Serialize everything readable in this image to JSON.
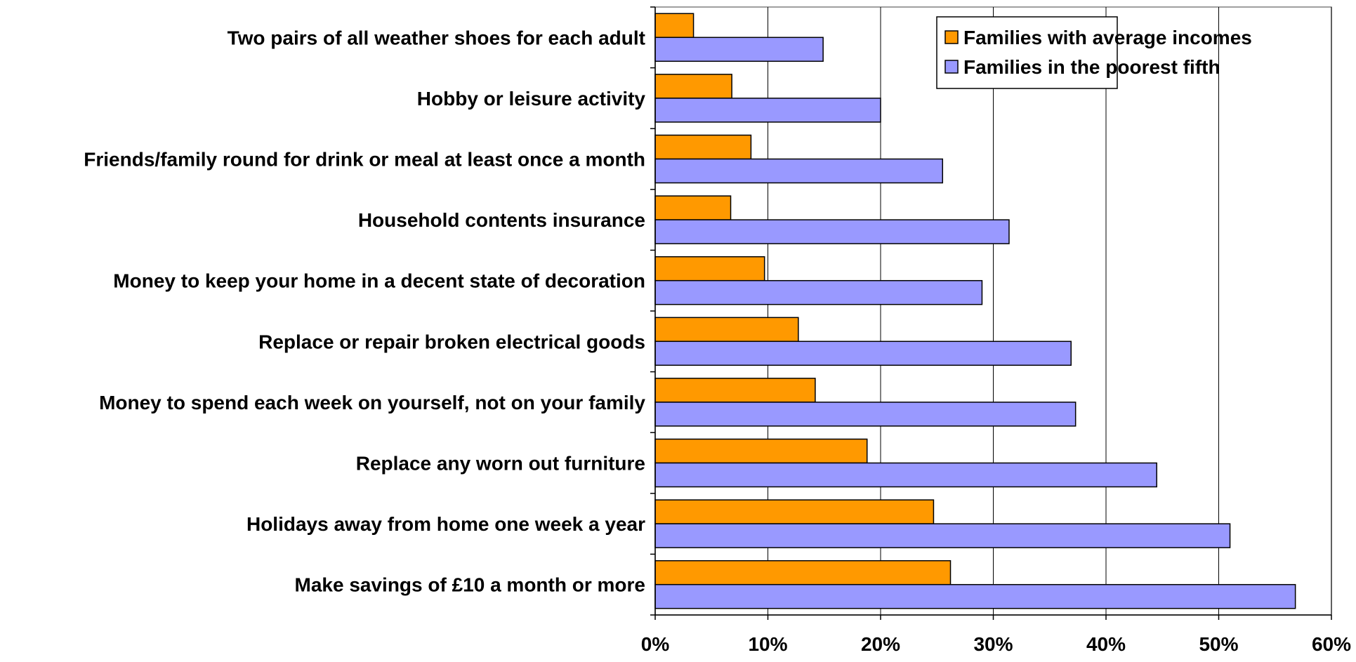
{
  "chart_data": {
    "type": "bar",
    "orientation": "horizontal",
    "title": "",
    "xlabel": "",
    "ylabel": "",
    "xlim": [
      0,
      60
    ],
    "x_ticks": [
      0,
      10,
      20,
      30,
      40,
      50,
      60
    ],
    "x_tick_labels": [
      "0%",
      "10%",
      "20%",
      "30%",
      "40%",
      "50%",
      "60%"
    ],
    "grid": "vertical",
    "legend_position": "top-right",
    "categories": [
      "Two pairs of all weather shoes for each adult",
      "Hobby or leisure activity",
      "Friends/family round for drink or meal at least once a month",
      "Household contents insurance",
      "Money to keep your home in a decent state of decoration",
      "Replace or repair broken electrical goods",
      "Money to spend each week on yourself, not on your family",
      "Replace any worn out furniture",
      "Holidays away from home one week a year",
      "Make savings of £10 a month or more"
    ],
    "series": [
      {
        "name": "Families with average incomes",
        "color": "#FF9900",
        "values": [
          3.4,
          6.8,
          8.5,
          6.7,
          9.7,
          12.7,
          14.2,
          18.8,
          24.7,
          26.2
        ]
      },
      {
        "name": "Families in the poorest fifth",
        "color": "#9999FF",
        "values": [
          14.9,
          20.0,
          25.5,
          31.4,
          29.0,
          36.9,
          37.3,
          44.5,
          51.0,
          56.8
        ]
      }
    ]
  }
}
